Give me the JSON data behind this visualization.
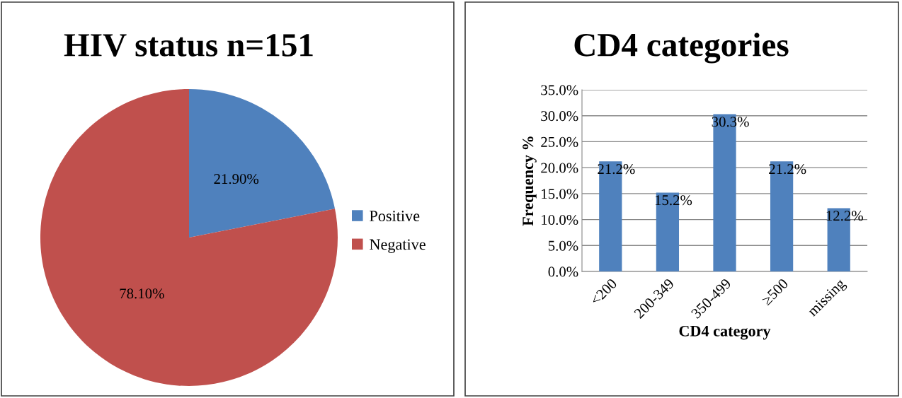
{
  "chart_data": [
    {
      "type": "pie",
      "title": "HIV status n=151",
      "categories": [
        "Positive",
        "Negative"
      ],
      "values": [
        21.9,
        78.1
      ],
      "colors": [
        "#4f81bd",
        "#c0504d"
      ],
      "value_labels": [
        "21.90%",
        "78.10%"
      ],
      "legend": "right"
    },
    {
      "type": "bar",
      "title": "CD4 categories",
      "xlabel": "CD4 category",
      "ylabel": "Frequency %",
      "categories": [
        "<200",
        "200-349",
        "350-499",
        "≥500",
        "missing"
      ],
      "values": [
        21.2,
        15.2,
        30.3,
        21.2,
        12.2
      ],
      "color": "#4f81bd",
      "value_labels": [
        "21.2%",
        "15.2%",
        "30.3%",
        "21.2%",
        "12.2%"
      ],
      "ylim": [
        0,
        35
      ],
      "yticks": [
        {
          "value": 0,
          "label": "0.0%"
        },
        {
          "value": 5,
          "label": "5.0%"
        },
        {
          "value": 10,
          "label": "10.0%"
        },
        {
          "value": 15,
          "label": "15.0%"
        },
        {
          "value": 20,
          "label": "20.0%"
        },
        {
          "value": 25,
          "label": "25.0%"
        },
        {
          "value": 30,
          "label": "30.0%"
        },
        {
          "value": 35,
          "label": "35.0%"
        }
      ],
      "grid": "y",
      "legend": false
    }
  ]
}
